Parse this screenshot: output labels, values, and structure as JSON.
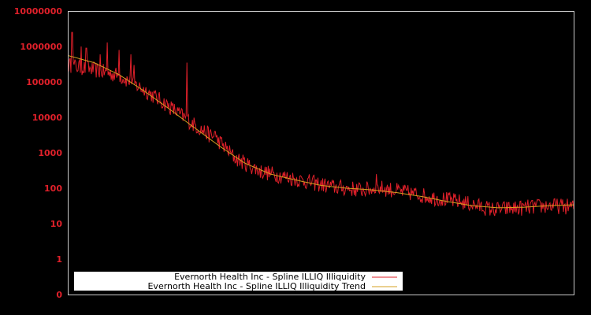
{
  "chart_data": {
    "type": "line",
    "title": "",
    "xlabel": "",
    "ylabel": "",
    "yscale": "log",
    "ylim": [
      0,
      10000000
    ],
    "ytick_labels": [
      "10000000",
      "1000000",
      "100000",
      "10000",
      "1000",
      "100",
      "10",
      "1",
      "0"
    ],
    "grid": false,
    "legend_position": "lower left",
    "colors": {
      "background": "#000000",
      "frame": "#c8c8c8",
      "tick_text": "#e0202a",
      "legend_bg": "#ffffff"
    },
    "series": [
      {
        "name": "Evernorth Health Inc - Spline ILLIQ Illiquidity",
        "color": "#e0202a",
        "approx_points": [
          {
            "x": 0.0,
            "y": 300000
          },
          {
            "x": 0.05,
            "y": 220000
          },
          {
            "x": 0.1,
            "y": 150000
          },
          {
            "x": 0.15,
            "y": 60000
          },
          {
            "x": 0.2,
            "y": 20000
          },
          {
            "x": 0.25,
            "y": 6000
          },
          {
            "x": 0.3,
            "y": 2000
          },
          {
            "x": 0.33,
            "y": 700
          },
          {
            "x": 0.38,
            "y": 300
          },
          {
            "x": 0.45,
            "y": 180
          },
          {
            "x": 0.52,
            "y": 110
          },
          {
            "x": 0.58,
            "y": 90
          },
          {
            "x": 0.62,
            "y": 100
          },
          {
            "x": 0.66,
            "y": 80
          },
          {
            "x": 0.72,
            "y": 55
          },
          {
            "x": 0.78,
            "y": 40
          },
          {
            "x": 0.84,
            "y": 25
          },
          {
            "x": 0.9,
            "y": 28
          },
          {
            "x": 0.95,
            "y": 32
          },
          {
            "x": 1.0,
            "y": 30
          }
        ],
        "spikes": [
          {
            "x": 0.007,
            "y": 2500000
          },
          {
            "x": 0.025,
            "y": 1000000
          },
          {
            "x": 0.035,
            "y": 900000
          },
          {
            "x": 0.062,
            "y": 600000
          },
          {
            "x": 0.077,
            "y": 1300000
          },
          {
            "x": 0.1,
            "y": 800000
          },
          {
            "x": 0.124,
            "y": 600000
          },
          {
            "x": 0.13,
            "y": 300000
          },
          {
            "x": 0.235,
            "y": 350000
          },
          {
            "x": 0.29,
            "y": 4000
          },
          {
            "x": 0.61,
            "y": 250
          }
        ]
      },
      {
        "name": "Evernorth Health Inc - Spline ILLIQ Illiquidity Trend",
        "color": "#d4a020",
        "approx_points": [
          {
            "x": 0.0,
            "y": 550000
          },
          {
            "x": 0.05,
            "y": 350000
          },
          {
            "x": 0.1,
            "y": 160000
          },
          {
            "x": 0.15,
            "y": 55000
          },
          {
            "x": 0.2,
            "y": 17000
          },
          {
            "x": 0.25,
            "y": 5000
          },
          {
            "x": 0.3,
            "y": 1500
          },
          {
            "x": 0.35,
            "y": 500
          },
          {
            "x": 0.4,
            "y": 250
          },
          {
            "x": 0.45,
            "y": 170
          },
          {
            "x": 0.5,
            "y": 120
          },
          {
            "x": 0.55,
            "y": 100
          },
          {
            "x": 0.6,
            "y": 90
          },
          {
            "x": 0.65,
            "y": 75
          },
          {
            "x": 0.7,
            "y": 58
          },
          {
            "x": 0.75,
            "y": 42
          },
          {
            "x": 0.8,
            "y": 32
          },
          {
            "x": 0.85,
            "y": 28
          },
          {
            "x": 0.9,
            "y": 29
          },
          {
            "x": 0.95,
            "y": 32
          },
          {
            "x": 1.0,
            "y": 34
          }
        ]
      }
    ]
  }
}
